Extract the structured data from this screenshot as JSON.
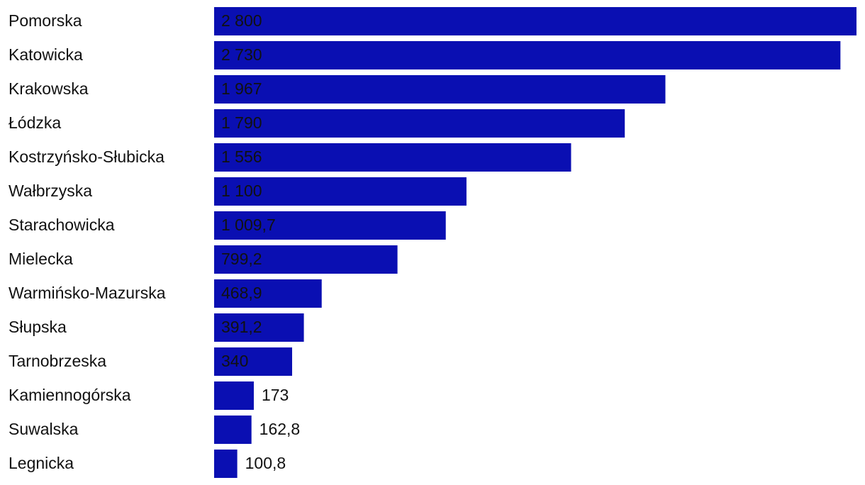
{
  "chart_data": {
    "type": "bar",
    "orientation": "horizontal",
    "color": "#0a0fb2",
    "categories": [
      "Pomorska",
      "Katowicka",
      "Krakowska",
      "Łódzka",
      "Kostrzyńsko-Słubicka",
      "Wałbrzyska",
      "Starachowicka",
      "Mielecka",
      "Warmińsko-Mazurska",
      "Słupska",
      "Tarnobrzeska",
      "Kamiennogórska",
      "Suwalska",
      "Legnicka"
    ],
    "values": [
      2800,
      2730,
      1967,
      1790,
      1556,
      1100,
      1009.7,
      799.2,
      468.9,
      391.2,
      340,
      173,
      162.8,
      100.8
    ],
    "value_labels": [
      "2 800",
      "2 730",
      "1 967",
      "1 790",
      "1 556",
      "1 100",
      "1 009,7",
      "799,2",
      "468,9",
      "391,2",
      "340",
      "173",
      "162,8",
      "100,8"
    ]
  }
}
